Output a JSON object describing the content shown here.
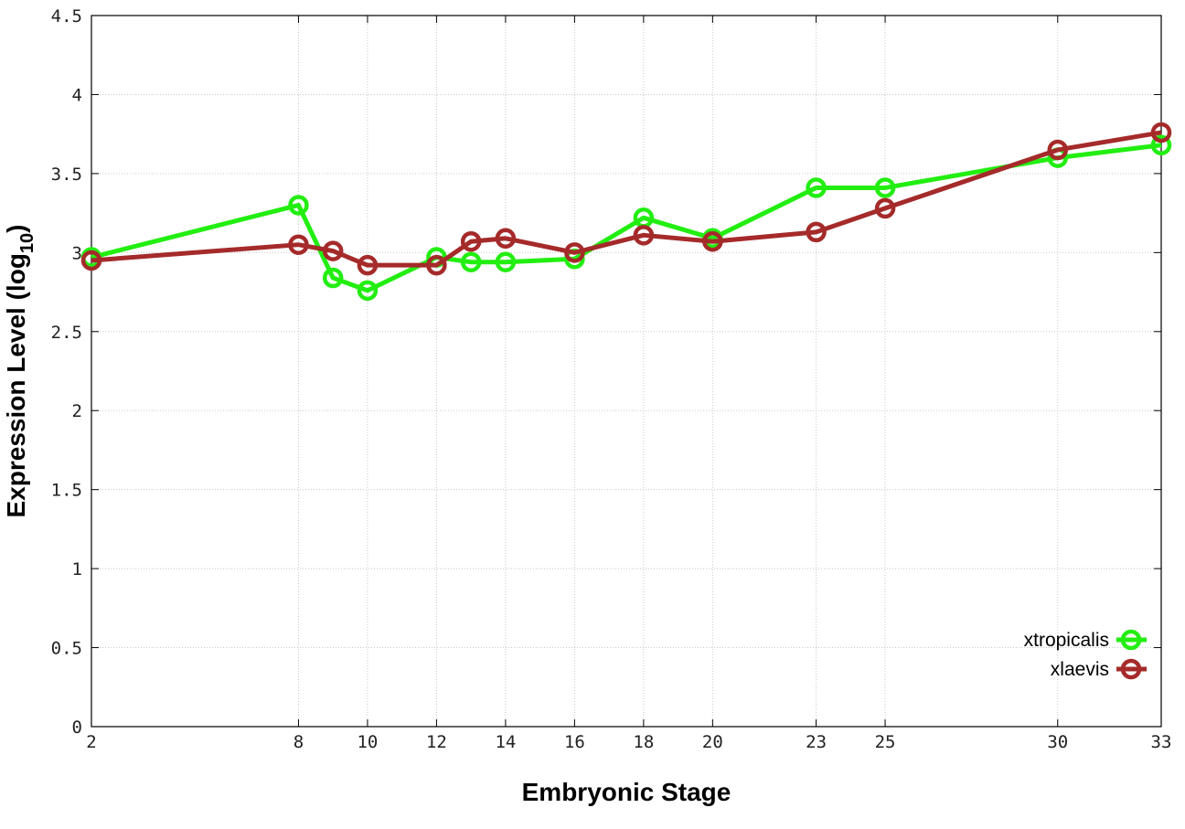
{
  "chart_data": {
    "type": "line",
    "xlabel": "Embryonic Stage",
    "ylabel_main": "Expression Level (log",
    "ylabel_sub": "10",
    "ylabel_close": ")",
    "ylim": [
      0,
      4.5
    ],
    "y_ticks": [
      "0",
      "0.5",
      "1",
      "1.5",
      "2",
      "2.5",
      "3",
      "3.5",
      "4",
      "4.5"
    ],
    "categories": [
      "2",
      "8",
      "9",
      "10",
      "12",
      "13",
      "14",
      "16",
      "18",
      "20",
      "23",
      "25",
      "30",
      "33"
    ],
    "x_tick_labels": [
      "2",
      "8",
      "10",
      "12",
      "14",
      "16",
      "18",
      "20",
      "23",
      "25",
      "30",
      "33"
    ],
    "grid": true,
    "legend_position": "bottom-right",
    "series": [
      {
        "name": "xtropicalis",
        "color": "#22ee11",
        "values": [
          2.97,
          3.3,
          2.84,
          2.76,
          2.97,
          2.94,
          2.94,
          2.96,
          3.22,
          3.09,
          3.41,
          3.41,
          3.6,
          3.68
        ]
      },
      {
        "name": "xlaevis",
        "color": "#a52a2a",
        "values": [
          2.95,
          3.05,
          3.01,
          2.92,
          2.92,
          3.07,
          3.09,
          3.0,
          3.11,
          3.07,
          3.13,
          3.28,
          3.65,
          3.76
        ]
      }
    ]
  }
}
